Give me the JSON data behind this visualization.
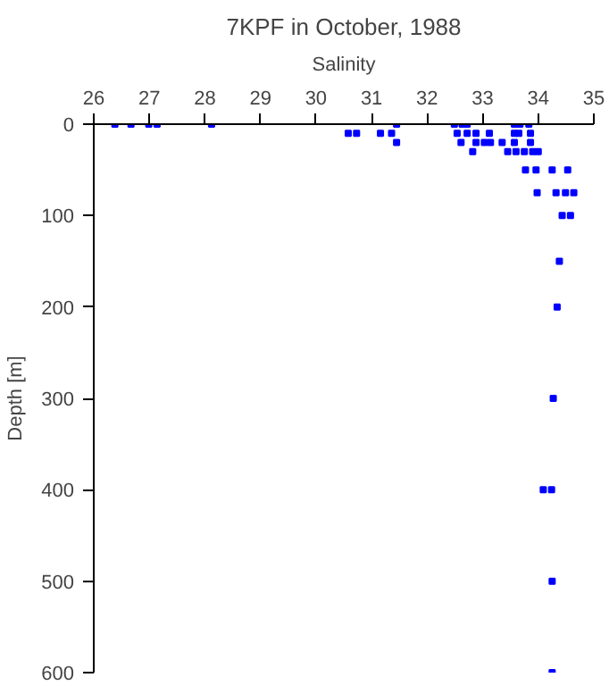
{
  "chart_data": {
    "type": "scatter",
    "title": "7KPF in October, 1988",
    "xlabel": "Salinity",
    "ylabel": "Depth [m]",
    "xlim": [
      26,
      35
    ],
    "ylim": [
      600,
      0
    ],
    "xticks": [
      26,
      27,
      28,
      29,
      30,
      31,
      32,
      33,
      34,
      35
    ],
    "yticks": [
      0,
      100,
      200,
      300,
      400,
      500,
      600
    ],
    "grid": false,
    "marker": "square",
    "series": [
      {
        "color": "#0000ff",
        "x": [
          26.38,
          26.67,
          26.99,
          27.14,
          28.12,
          31.45,
          32.49,
          32.63,
          32.72,
          33.57,
          33.67,
          33.83,
          30.58,
          30.73,
          31.16,
          31.36,
          32.54,
          32.72,
          32.88,
          33.12,
          33.57,
          33.65,
          33.86,
          31.45,
          32.61,
          32.88,
          33.03,
          33.14,
          33.35,
          33.57,
          33.86,
          32.82,
          33.45,
          33.6,
          33.75,
          33.9,
          34.0,
          33.77,
          33.96,
          34.25,
          34.53,
          33.98,
          34.32,
          34.49,
          34.64,
          34.43,
          34.58,
          34.38,
          34.34,
          34.27,
          34.09,
          34.24,
          34.25,
          34.25
        ],
        "values": [
          0,
          0,
          0,
          0,
          0,
          0,
          0,
          0,
          0,
          0,
          0,
          0,
          10,
          10,
          10,
          10,
          10,
          10,
          10,
          10,
          10,
          10,
          10,
          20,
          20,
          20,
          20,
          20,
          20,
          20,
          20,
          30,
          30,
          30,
          30,
          30,
          30,
          50,
          50,
          50,
          50,
          75,
          75,
          75,
          75,
          100,
          100,
          150,
          200,
          300,
          400,
          400,
          500,
          600
        ]
      }
    ]
  }
}
